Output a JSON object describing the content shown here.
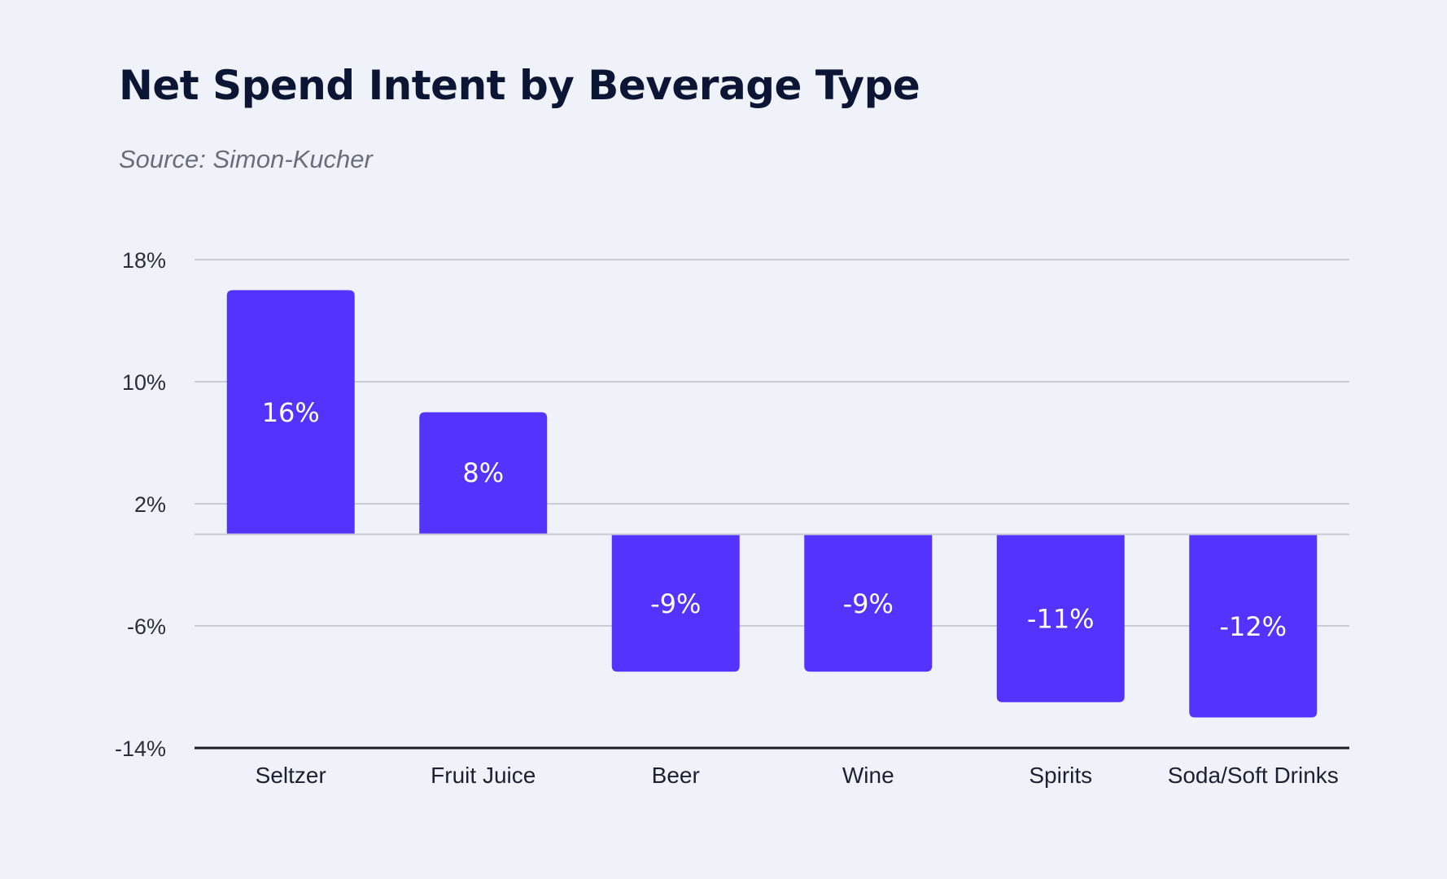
{
  "chart_data": {
    "type": "bar",
    "title": "Net Spend Intent by Beverage Type",
    "subtitle": "Source: Simon-Kucher",
    "xlabel": "",
    "ylabel": "",
    "categories": [
      "Seltzer",
      "Fruit Juice",
      "Beer",
      "Wine",
      "Spirits",
      "Soda/Soft Drinks"
    ],
    "values": [
      16,
      8,
      -9,
      -9,
      -11,
      -12
    ],
    "data_labels": [
      "16%",
      "8%",
      "-9%",
      "-9%",
      "-11%",
      "-12%"
    ],
    "yticks": [
      18,
      10,
      2,
      -6,
      -14
    ],
    "ytick_labels": [
      "18%",
      "10%",
      "2%",
      "-6%",
      "-14%"
    ],
    "ylim": [
      -14,
      18
    ],
    "grid": true,
    "legend": "none",
    "bar_color": "#5533ff",
    "background_color": "#eff3f9"
  }
}
